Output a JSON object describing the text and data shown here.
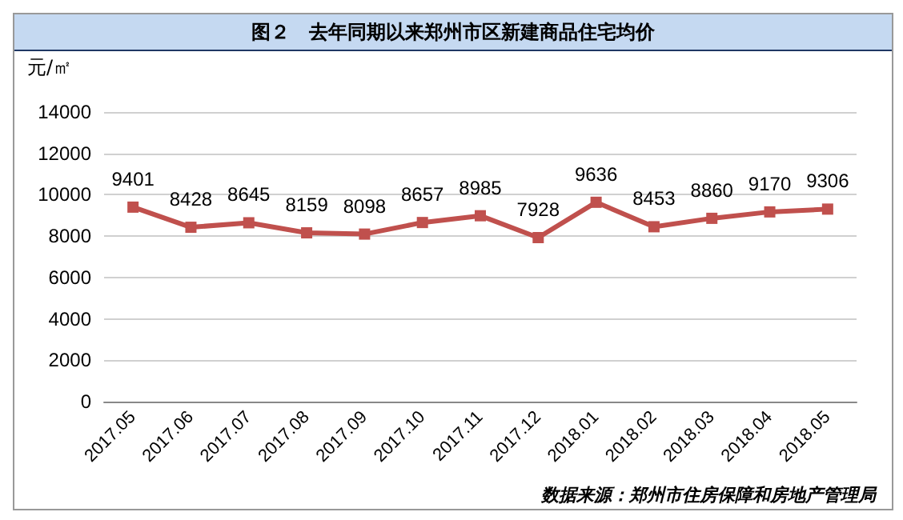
{
  "chart_data": {
    "type": "line",
    "title": "图２　去年同期以来郑州市区新建商品住宅均价",
    "ylabel": "元/㎡",
    "categories": [
      "2017.05",
      "2017.06",
      "2017.07",
      "2017.08",
      "2017.09",
      "2017.10",
      "2017.11",
      "2017.12",
      "2018.01",
      "2018.02",
      "2018.03",
      "2018.04",
      "2018.05"
    ],
    "series": [
      {
        "color": "#c0504d",
        "values": [
          9401,
          8428,
          8645,
          8159,
          8098,
          8657,
          8985,
          7928,
          9636,
          8453,
          8860,
          9170,
          9306
        ]
      }
    ],
    "ylim": [
      0,
      14000
    ],
    "yticks": [
      0,
      2000,
      4000,
      6000,
      8000,
      10000,
      12000,
      14000
    ],
    "grid": "y",
    "marker": "square",
    "line_style": "solid",
    "data_labels": true,
    "annotations": [
      "数据来源：郑州市住房保障和房地产管理局"
    ]
  }
}
